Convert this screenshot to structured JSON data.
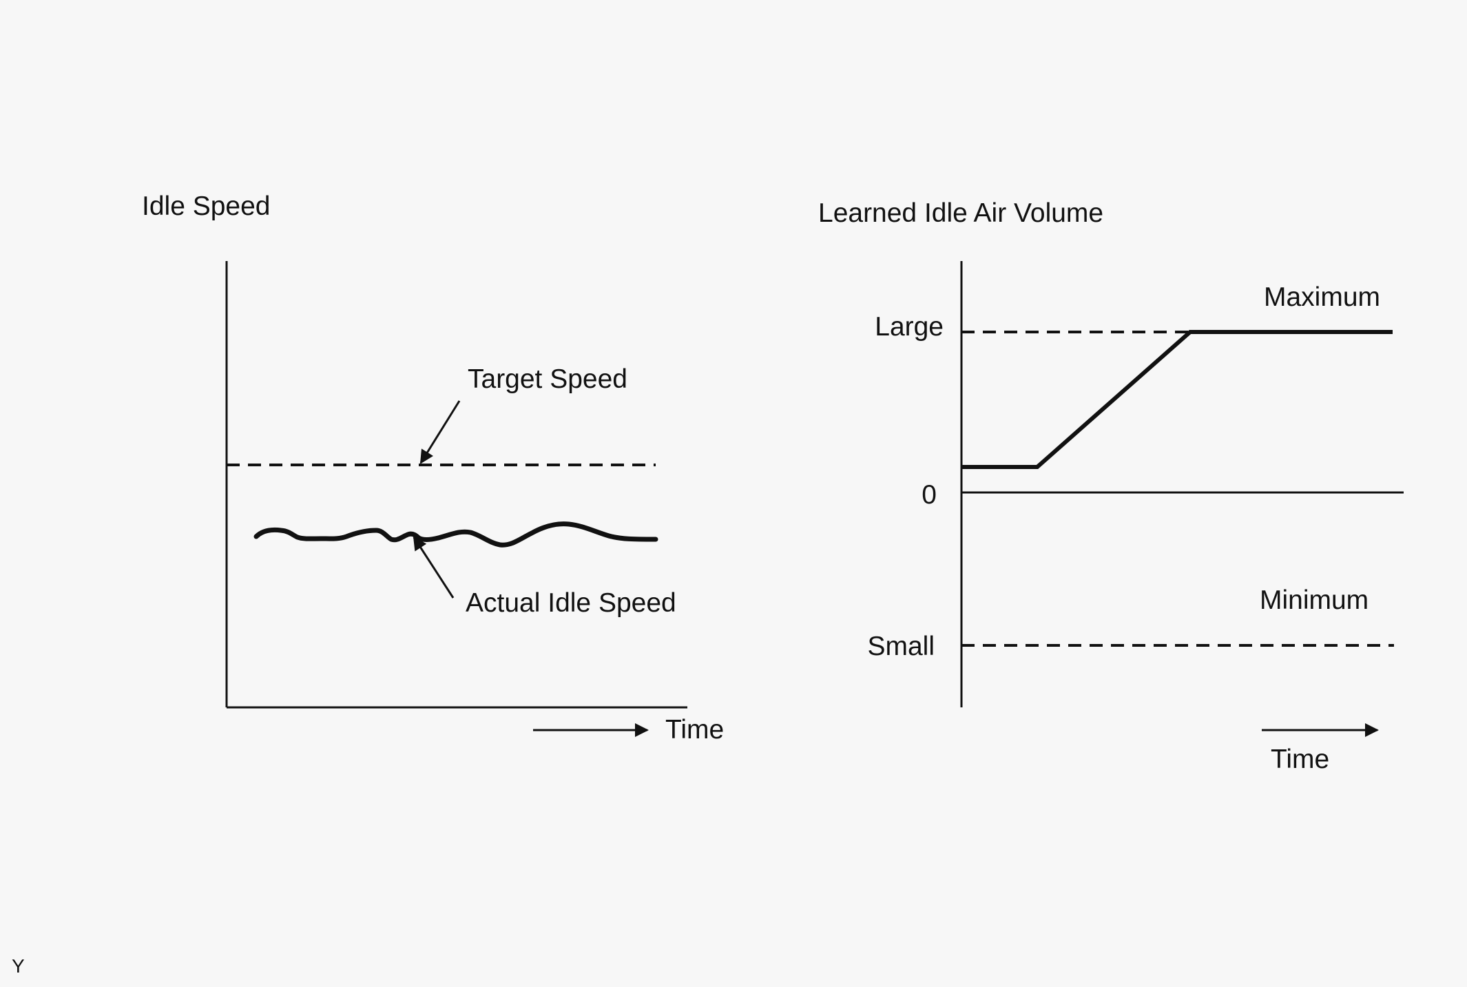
{
  "left_graph": {
    "y_axis_label": "Idle Speed",
    "target_label": "Target Speed",
    "actual_label": "Actual Idle Speed",
    "time_label": "Time"
  },
  "right_graph": {
    "y_axis_label": "Learned Idle Air Volume",
    "tick_large": "Large",
    "tick_zero": "0",
    "tick_small": "Small",
    "maximum_label": "Maximum",
    "minimum_label": "Minimum",
    "time_label": "Time"
  },
  "corner_code": "Y"
}
